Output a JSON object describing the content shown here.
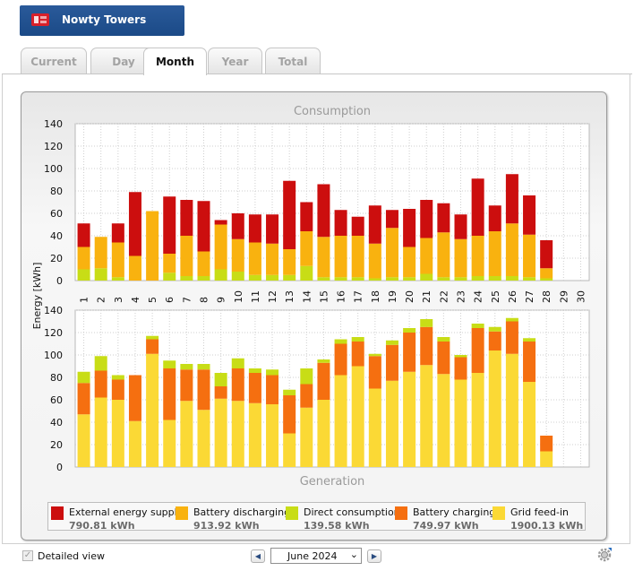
{
  "app": {
    "title": "Nowty Towers"
  },
  "tabs": [
    {
      "label": "Current",
      "active": false
    },
    {
      "label": "Day",
      "active": false
    },
    {
      "label": "Month",
      "active": true
    },
    {
      "label": "Year",
      "active": false
    },
    {
      "label": "Total",
      "active": false
    }
  ],
  "chart_data": [
    {
      "type": "bar",
      "stacked": true,
      "title": "Consumption",
      "ylabel": "Energy [kWh]",
      "ylim": [
        0,
        140
      ],
      "yticks": [
        0,
        20,
        40,
        60,
        80,
        100,
        120,
        140
      ],
      "categories": [
        "1",
        "2",
        "3",
        "4",
        "5",
        "6",
        "7",
        "8",
        "9",
        "10",
        "11",
        "12",
        "13",
        "14",
        "15",
        "16",
        "17",
        "18",
        "19",
        "20",
        "21",
        "22",
        "23",
        "24",
        "25",
        "26",
        "27",
        "28",
        "29",
        "30"
      ],
      "series": [
        {
          "name": "Direct consumption",
          "color": "#c8dd16",
          "values": [
            10,
            11,
            3,
            0,
            0,
            7,
            4,
            4,
            10,
            8,
            5,
            5,
            5,
            13,
            3,
            3,
            3,
            2,
            3,
            3,
            6,
            3,
            3,
            4,
            4,
            4,
            3,
            2,
            0,
            0
          ]
        },
        {
          "name": "Battery discharging",
          "color": "#f9b20f",
          "values": [
            20,
            28,
            31,
            22,
            62,
            17,
            36,
            22,
            40,
            29,
            29,
            28,
            23,
            31,
            36,
            37,
            37,
            31,
            44,
            27,
            32,
            40,
            34,
            36,
            40,
            47,
            38,
            9,
            0,
            0
          ]
        },
        {
          "name": "External energy supply",
          "color": "#cc0e0e",
          "values": [
            21,
            0,
            17,
            57,
            0,
            51,
            32,
            45,
            4,
            23,
            25,
            26,
            61,
            26,
            47,
            23,
            17,
            34,
            16,
            34,
            34,
            26,
            22,
            51,
            23,
            44,
            35,
            25,
            0,
            0
          ]
        }
      ]
    },
    {
      "type": "bar",
      "stacked": true,
      "title": "Generation",
      "ylabel": "Energy [kWh]",
      "ylim": [
        0,
        140
      ],
      "yticks": [
        0,
        20,
        40,
        60,
        80,
        100,
        120,
        140
      ],
      "categories": [
        "1",
        "2",
        "3",
        "4",
        "5",
        "6",
        "7",
        "8",
        "9",
        "10",
        "11",
        "12",
        "13",
        "14",
        "15",
        "16",
        "17",
        "18",
        "19",
        "20",
        "21",
        "22",
        "23",
        "24",
        "25",
        "26",
        "27",
        "28",
        "29",
        "30"
      ],
      "series": [
        {
          "name": "Grid feed-in",
          "color": "#fbd935",
          "values": [
            47,
            62,
            60,
            41,
            101,
            42,
            59,
            51,
            61,
            59,
            57,
            56,
            30,
            53,
            60,
            82,
            90,
            70,
            77,
            85,
            91,
            83,
            78,
            84,
            104,
            101,
            76,
            14,
            0,
            0
          ]
        },
        {
          "name": "Battery charging",
          "color": "#f56f10",
          "values": [
            28,
            24,
            18,
            41,
            13,
            46,
            28,
            36,
            11,
            29,
            27,
            26,
            34,
            21,
            33,
            28,
            22,
            29,
            32,
            35,
            34,
            29,
            20,
            40,
            17,
            29,
            36,
            14,
            0,
            0
          ]
        },
        {
          "name": "Direct consumption",
          "color": "#c8dd16",
          "values": [
            10,
            13,
            4,
            0,
            3,
            7,
            5,
            5,
            12,
            9,
            4,
            5,
            5,
            14,
            3,
            4,
            4,
            2,
            4,
            4,
            7,
            4,
            2,
            4,
            4,
            3,
            3,
            0,
            0,
            0
          ]
        }
      ]
    }
  ],
  "legend": [
    {
      "label": "External energy supply",
      "value": "790.81 kWh",
      "color": "#cc0e0e"
    },
    {
      "label": "Battery discharging",
      "value": "913.92 kWh",
      "color": "#f9b20f"
    },
    {
      "label": "Direct consumption",
      "value": "139.58 kWh",
      "color": "#c8dd16"
    },
    {
      "label": "Battery charging",
      "value": "749.97 kWh",
      "color": "#f56f10"
    },
    {
      "label": "Grid feed-in",
      "value": "1900.13 kWh",
      "color": "#fbd935"
    }
  ],
  "footer": {
    "detailed_view_label": "Detailed view",
    "month_value": "June 2024"
  },
  "icons": [
    "logo-icon",
    "prev-arrow-icon",
    "next-arrow-icon",
    "dropdown-arrow-icon",
    "settings-icon"
  ]
}
